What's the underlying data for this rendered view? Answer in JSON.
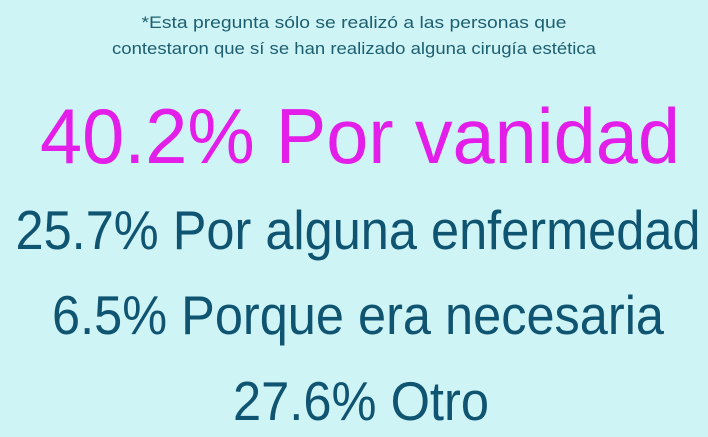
{
  "note": [
    "*Esta pregunta sólo se realizó a las personas que",
    "contestaron que sí se han realizado alguna cirugía estética"
  ],
  "results": [
    "40.2% Por vanidad",
    "25.7% Por alguna enfermedad",
    "6.5% Porque era necesaria",
    "27.6% Otro"
  ]
}
